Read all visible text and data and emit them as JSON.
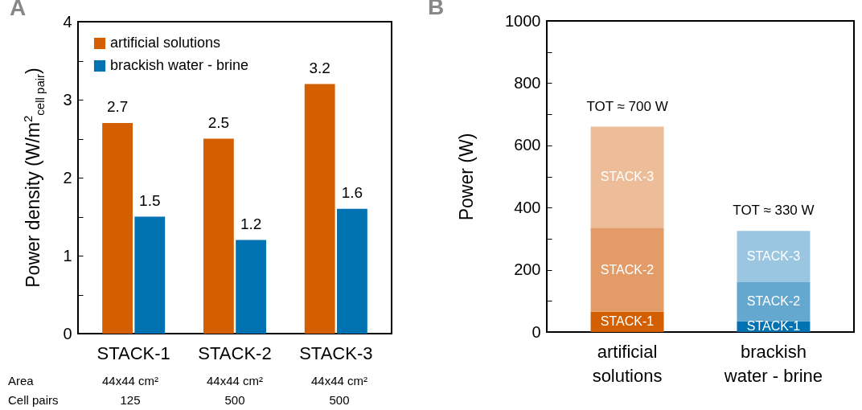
{
  "chart_data": [
    {
      "type": "bar",
      "title": "A",
      "ylabel": "Power density (W/m$^{2}$$_{cell pair}$)",
      "categories": [
        "STACK-1",
        "STACK-2",
        "STACK-3"
      ],
      "series": [
        {
          "name": "artificial solutions",
          "color": "#d35f00",
          "values": [
            2.7,
            2.5,
            3.2
          ]
        },
        {
          "name": "brackish water - brine",
          "color": "#0071b1",
          "values": [
            1.5,
            1.2,
            1.6
          ]
        }
      ],
      "data_labels": true,
      "legend": "top left",
      "ylim": [
        0,
        4
      ],
      "yticks": [
        0,
        {
          "value": 0.5,
          "label": null
        },
        1,
        {
          "value": 1.5,
          "label": null
        },
        2,
        {
          "value": 2.5,
          "label": null
        },
        3,
        {
          "value": 3.5,
          "label": null
        },
        4
      ],
      "annotations": [
        "Area",
        "44x44 cm²",
        "44x44 cm²",
        "44x44 cm²",
        "Cell pairs",
        "125",
        "500",
        "500"
      ]
    },
    {
      "type": "bar",
      "title": "B",
      "ylabel": "Power (W)",
      "categories": [
        "artificial solutions",
        "brackish water - brine"
      ],
      "stacked": true,
      "series": [
        {
          "name": "STACK-1",
          "colors": [
            "#d35f00",
            "#0071b1"
          ],
          "values": [
            65,
            35
          ]
        },
        {
          "name": "STACK-2",
          "colors": [
            "#e39b67",
            "#64a8cf"
          ],
          "values": [
            270,
            125
          ]
        },
        {
          "name": "STACK-3",
          "colors": [
            "#ecbd98",
            "#9ac6e2"
          ],
          "values": [
            325,
            165
          ]
        }
      ],
      "annotations": [
        {
          "text": "TOT ≈ 700 W",
          "x": "artificial solutions",
          "y": 660
        },
        {
          "text": "TOT ≈ 330 W",
          "x": "brackish water - brine",
          "y": 325
        }
      ],
      "ylim": [
        0,
        1000
      ],
      "yticks": [
        0,
        {
          "value": 100,
          "label": null
        },
        200,
        {
          "value": 300,
          "label": null
        },
        400,
        {
          "value": 500,
          "label": null
        },
        600,
        {
          "value": 700,
          "label": null
        },
        800,
        {
          "value": 900,
          "label": null
        },
        1000
      ]
    }
  ]
}
